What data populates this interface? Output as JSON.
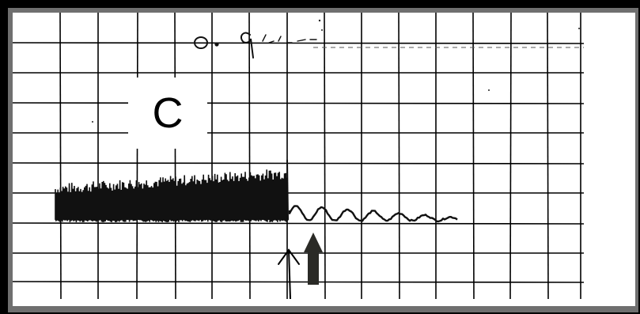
{
  "figure": {
    "panel_label": "C",
    "handwritten_note": "0·9",
    "arrow_color": "#2a2a26",
    "trace_color": "#111111",
    "grid_color": "#000000",
    "frame_color": "#6f6f6f",
    "border_color": "#000000",
    "icons": {
      "stimulus_arrow": "up-arrow-icon",
      "time_mark": "caret-up-icon"
    }
  }
}
